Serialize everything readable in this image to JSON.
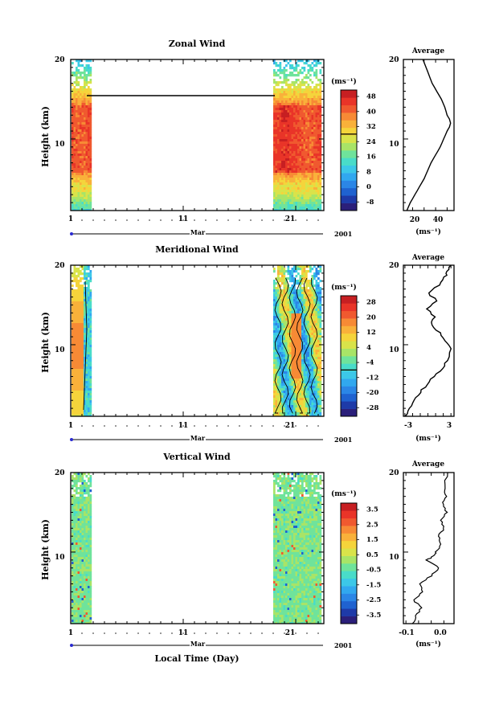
{
  "palette": [
    "#2b1f7a",
    "#1e3aa8",
    "#1f62d0",
    "#2b86e6",
    "#31a8ef",
    "#3cc8e8",
    "#49dcc9",
    "#6fe39b",
    "#a8e467",
    "#d9e34a",
    "#f5d43b",
    "#f9b13a",
    "#f78a35",
    "#f0592f",
    "#e93428",
    "#c71f22"
  ],
  "panels": [
    {
      "id": "zonal",
      "title": "Zonal Wind",
      "ylabel": "Height (km)",
      "yticks": [
        "20",
        "10"
      ],
      "xticks": [
        "1",
        "11",
        "21"
      ],
      "month": "Mar",
      "year": "2001",
      "unit": "(ms⁻¹)",
      "colorbar_labels": [
        "48",
        "40",
        "32",
        "24",
        "16",
        "8",
        "0",
        "-8"
      ],
      "zero_line_index": 2,
      "avg_title": "Average",
      "avg_yticks": [
        "20",
        "10"
      ],
      "avg_xticks": [
        "20",
        "40"
      ],
      "avg_unit": "(ms⁻¹)"
    },
    {
      "id": "meridional",
      "title": "Meridional Wind",
      "ylabel": "Height (km)",
      "yticks": [
        "20",
        "10"
      ],
      "xticks": [
        "1",
        "11",
        "21"
      ],
      "month": "Mar",
      "year": "2001",
      "unit": "(ms⁻¹)",
      "colorbar_labels": [
        "28",
        "20",
        "12",
        "4",
        "-4",
        "-12",
        "-20",
        "-28"
      ],
      "zero_line_index": 4,
      "avg_title": "Average",
      "avg_yticks": [
        "20",
        "10"
      ],
      "avg_xticks": [
        "-3",
        "3"
      ],
      "avg_unit": "(ms⁻¹)"
    },
    {
      "id": "vertical",
      "title": "Vertical Wind",
      "ylabel": "Height (km)",
      "yticks": [
        "20",
        "10"
      ],
      "xticks": [
        "1",
        "11",
        "21"
      ],
      "month": "Mar",
      "year": "2001",
      "unit": "(ms⁻¹)",
      "colorbar_labels": [
        "3.5",
        "2.5",
        "1.5",
        "0.5",
        "-0.5",
        "-1.5",
        "-2.5",
        "-3.5"
      ],
      "zero_line_index": -1,
      "avg_title": "Average",
      "avg_yticks": [
        "20",
        "10"
      ],
      "avg_xticks": [
        "-0.1",
        "0.0"
      ],
      "avg_unit": "(ms⁻¹)",
      "xlabel": "Local Time (Day)"
    }
  ],
  "chart_data": [
    {
      "type": "heatmap",
      "title": "Zonal Wind",
      "ylabel": "Height (km)",
      "x_range": [
        1,
        24
      ],
      "y_range": [
        1,
        20
      ],
      "data_blocks_days": [
        [
          1,
          2.6
        ],
        [
          19.2,
          23.6
        ]
      ],
      "colorbar": [
        -8,
        0,
        8,
        16,
        24,
        32,
        40,
        48
      ]
    },
    {
      "type": "line",
      "title": "Average",
      "x": [
        15,
        18,
        22,
        26,
        30,
        33,
        36,
        40,
        44,
        47,
        50,
        52,
        53,
        52,
        50,
        48,
        45,
        41,
        37,
        33,
        29
      ],
      "y": [
        1,
        2,
        3,
        4,
        5,
        6,
        7,
        8,
        9,
        10,
        11,
        11.5,
        12,
        12.5,
        13,
        14,
        15,
        16,
        17,
        18.5,
        20
      ],
      "xlim": [
        12,
        56
      ],
      "ylim": [
        1,
        20
      ]
    },
    {
      "type": "heatmap",
      "title": "Meridional Wind",
      "ylabel": "Height (km)",
      "x_range": [
        1,
        24
      ],
      "y_range": [
        1,
        20
      ],
      "data_blocks_days": [
        [
          1,
          2.6
        ],
        [
          19.2,
          23.6
        ]
      ],
      "colorbar": [
        -28,
        -20,
        -12,
        -4,
        4,
        12,
        20,
        28
      ]
    },
    {
      "type": "line",
      "title": "Average",
      "x": [
        -2.8,
        -2.4,
        -1.8,
        -1.0,
        -0.2,
        0.8,
        1.8,
        2.6,
        3.0,
        2.2,
        1.6,
        0.4,
        0.9,
        -0.1,
        1.2,
        0.0,
        1.4,
        2.2,
        2.6,
        3.0
      ],
      "y": [
        1,
        2,
        3,
        4,
        5,
        6,
        7,
        8,
        9.5,
        10.5,
        11.5,
        12.5,
        13.5,
        14.5,
        15.5,
        16.5,
        17.5,
        18.5,
        19.2,
        20
      ],
      "xlim": [
        -3.2,
        3.4
      ],
      "ylim": [
        1,
        20
      ]
    },
    {
      "type": "heatmap",
      "title": "Vertical Wind",
      "ylabel": "Height (km)",
      "xlabel": "Local Time (Day)",
      "x_range": [
        1,
        24
      ],
      "y_range": [
        1,
        20
      ],
      "data_blocks_days": [
        [
          1,
          2.6
        ],
        [
          19.2,
          23.6
        ]
      ],
      "colorbar": [
        -3.5,
        -2.5,
        -1.5,
        -0.5,
        0.5,
        1.5,
        2.5,
        3.5
      ]
    },
    {
      "type": "line",
      "title": "Average",
      "x": [
        -0.12,
        -0.11,
        -0.09,
        -0.12,
        -0.08,
        -0.1,
        -0.05,
        -0.02,
        -0.07,
        -0.04,
        -0.03,
        -0.01,
        -0.02,
        0.0,
        -0.01,
        0.01,
        -0.005,
        0.01,
        0.0,
        0.015
      ],
      "y": [
        1,
        2,
        3,
        4,
        5,
        6,
        7,
        8,
        9,
        9.5,
        10,
        11,
        12,
        13,
        14,
        15,
        16,
        17,
        18,
        20
      ],
      "xlim": [
        -0.16,
        0.04
      ],
      "ylim": [
        1,
        20
      ]
    }
  ]
}
